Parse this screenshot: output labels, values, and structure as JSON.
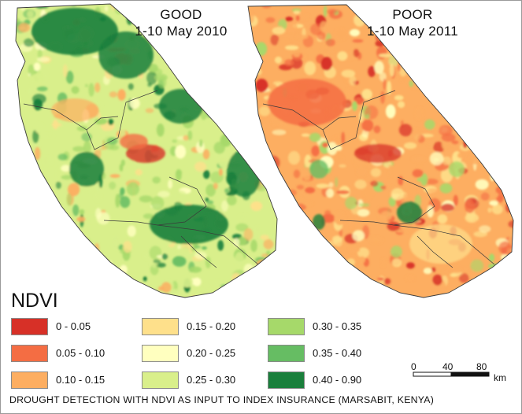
{
  "maps": [
    {
      "id": "good",
      "title_line1": "GOOD",
      "title_line2": "1-10 May 2010",
      "condition": "good"
    },
    {
      "id": "poor",
      "title_line1": "POOR",
      "title_line2": "1-10 May 2011",
      "condition": "poor"
    }
  ],
  "legend": {
    "title": "NDVI",
    "classes": [
      {
        "label": "0 - 0.05",
        "color": "#d73027"
      },
      {
        "label": "0.05 - 0.10",
        "color": "#f46d43"
      },
      {
        "label": "0.10 - 0.15",
        "color": "#fdae61"
      },
      {
        "label": "0.15 - 0.20",
        "color": "#fee08b"
      },
      {
        "label": "0.20 - 0.25",
        "color": "#ffffbf"
      },
      {
        "label": "0.25 - 0.30",
        "color": "#d9ef8b"
      },
      {
        "label": "0.30 - 0.35",
        "color": "#a6d96a"
      },
      {
        "label": "0.35 - 0.40",
        "color": "#66bd63"
      },
      {
        "label": "0.40 - 0.90",
        "color": "#1a7f3c"
      }
    ]
  },
  "scalebar": {
    "labels": [
      "0",
      "40",
      "80"
    ],
    "unit": "km"
  },
  "caption": "DROUGHT DETECTION WITH NDVI AS INPUT TO INDEX INSURANCE (MARSABIT, KENYA)"
}
